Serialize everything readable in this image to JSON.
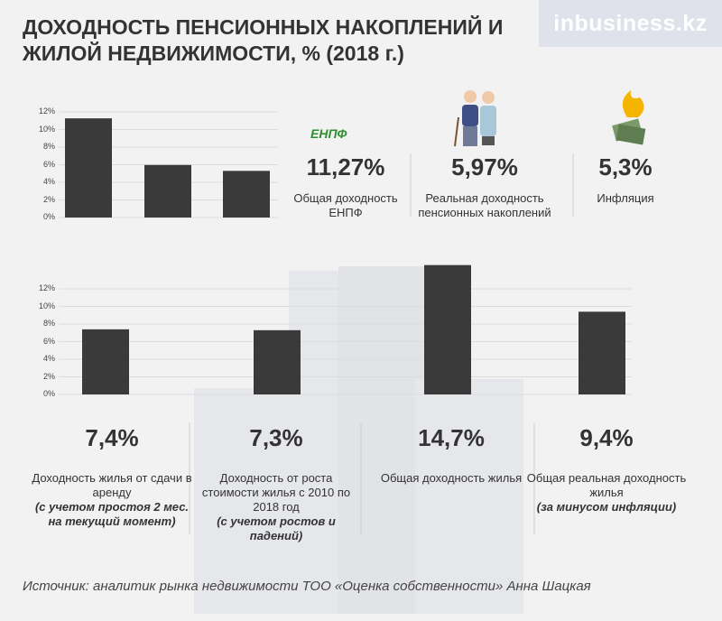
{
  "title": "ДОХОДНОСТЬ ПЕНСИОННЫХ НАКОПЛЕНИЙ И ЖИЛОЙ НЕДВИЖИМОСТИ, % (2018 г.)",
  "logo": "inbusiness.kz",
  "enpf_logo": "ЕНПФ",
  "source": "Источник: аналитик рынка недвижимости ТОО «Оценка собственности» Анна Шацкая",
  "chart_data": [
    {
      "type": "bar",
      "color": "#3a3a3a",
      "categories": [
        "Общая доходность ЕНПФ",
        "Реальная доходность пенсионных накоплений",
        "Инфляция"
      ],
      "values": [
        11.27,
        5.97,
        5.3
      ],
      "value_labels": [
        "11,27%",
        "5,97%",
        "5,3%"
      ],
      "ylim": [
        0,
        12
      ],
      "yticks": [
        {
          "value": 0,
          "label": "0%"
        },
        {
          "value": 2,
          "label": "2%"
        },
        {
          "value": 4,
          "label": "4%"
        },
        {
          "value": 6,
          "label": "6%"
        },
        {
          "value": 8,
          "label": "8%"
        },
        {
          "value": 10,
          "label": "10%"
        },
        {
          "value": 12,
          "label": "12%"
        }
      ],
      "grid": true
    },
    {
      "type": "bar",
      "color": "#3a3a3a",
      "categories": [
        "Доходность жилья от сдачи в аренду",
        "Доходность от роста стоимости жилья с 2010 по 2018 год",
        "Общая доходность жилья",
        "Общая реальная доходность жилья"
      ],
      "notes": [
        "(с учетом простоя 2 мес. на текущий момент)",
        "(с учетом ростов и падений)",
        null,
        "(за минусом инфляции)"
      ],
      "values": [
        7.4,
        7.3,
        14.7,
        9.4
      ],
      "value_labels": [
        "7,4%",
        "7,3%",
        "14,7%",
        "9,4%"
      ],
      "ylim": [
        0,
        12
      ],
      "yticks": [
        {
          "value": 0,
          "label": "0%"
        },
        {
          "value": 2,
          "label": "2%"
        },
        {
          "value": 4,
          "label": "4%"
        },
        {
          "value": 6,
          "label": "6%"
        },
        {
          "value": 8,
          "label": "8%"
        },
        {
          "value": 10,
          "label": "10%"
        },
        {
          "value": 12,
          "label": "12%"
        }
      ],
      "grid": true
    }
  ]
}
